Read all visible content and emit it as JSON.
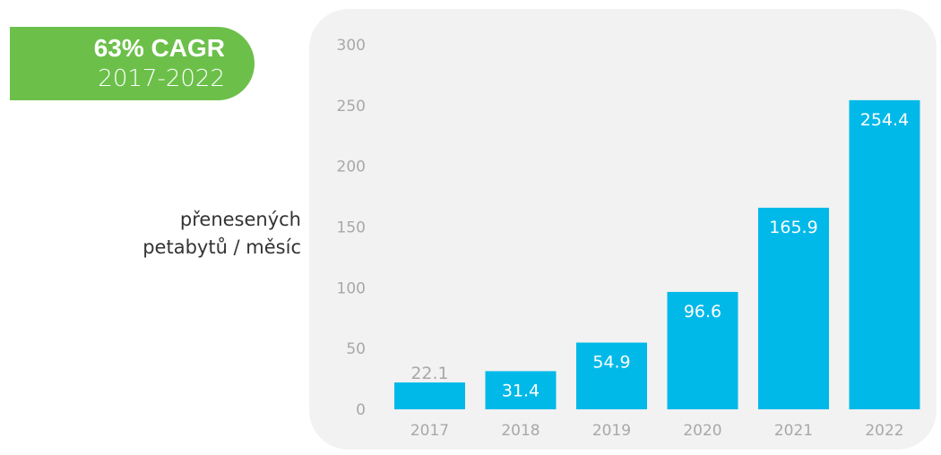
{
  "badge": {
    "title": "63% CAGR",
    "subtitle": "2017-2022"
  },
  "y_label_lines": [
    "přenesených",
    "petabytů / měsíc"
  ],
  "colors": {
    "bar": "#00b9e8",
    "badge": "#6cc04a",
    "panel": "#f2f2f2",
    "label_inside": "#ffffff",
    "label_outside": "#a8a8a8",
    "tick": "#a8a8a8"
  },
  "chart_data": {
    "type": "bar",
    "categories": [
      "2017",
      "2018",
      "2019",
      "2020",
      "2021",
      "2022"
    ],
    "values": [
      22.1,
      31.4,
      54.9,
      96.6,
      165.9,
      254.4
    ],
    "value_labels": [
      "22.1",
      "31.4",
      "54.9",
      "96.6",
      "165.9",
      "254.4"
    ],
    "ylim": [
      0,
      300
    ],
    "yticks": [
      0,
      50,
      100,
      150,
      200,
      250,
      300
    ],
    "grid": false,
    "title": "",
    "xlabel": "",
    "ylabel": "přenesených petabytů / měsíc"
  }
}
